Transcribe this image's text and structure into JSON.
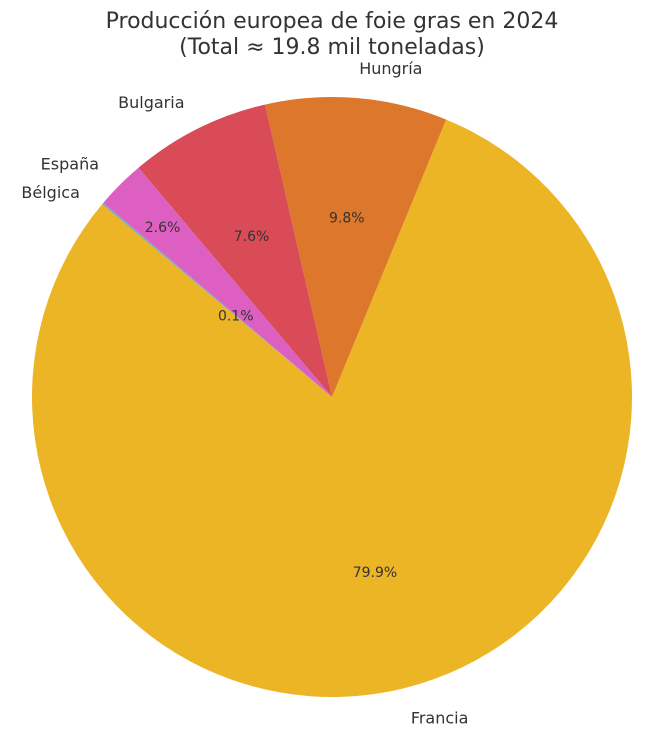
{
  "chart_data": {
    "type": "pie",
    "title": "Producción europea de foie gras en 2024",
    "subtitle": "(Total ≈ 19.8 mil toneladas)",
    "start_angle_deg": 140,
    "direction": "counterclockwise",
    "slices": [
      {
        "label": "Francia",
        "value": 15.82,
        "pct_label": "79.9%",
        "color": "#ecb526"
      },
      {
        "label": "Hungría",
        "value": 1.94,
        "pct_label": "9.8%",
        "color": "#dc772b"
      },
      {
        "label": "Bulgaria",
        "value": 1.5,
        "pct_label": "7.6%",
        "color": "#d94b56"
      },
      {
        "label": "España",
        "value": 0.52,
        "pct_label": "2.6%",
        "color": "#dc5fc1"
      },
      {
        "label": "Bélgica",
        "value": 0.02,
        "pct_label": "0.1%",
        "color": "#7fa6c9"
      }
    ]
  }
}
